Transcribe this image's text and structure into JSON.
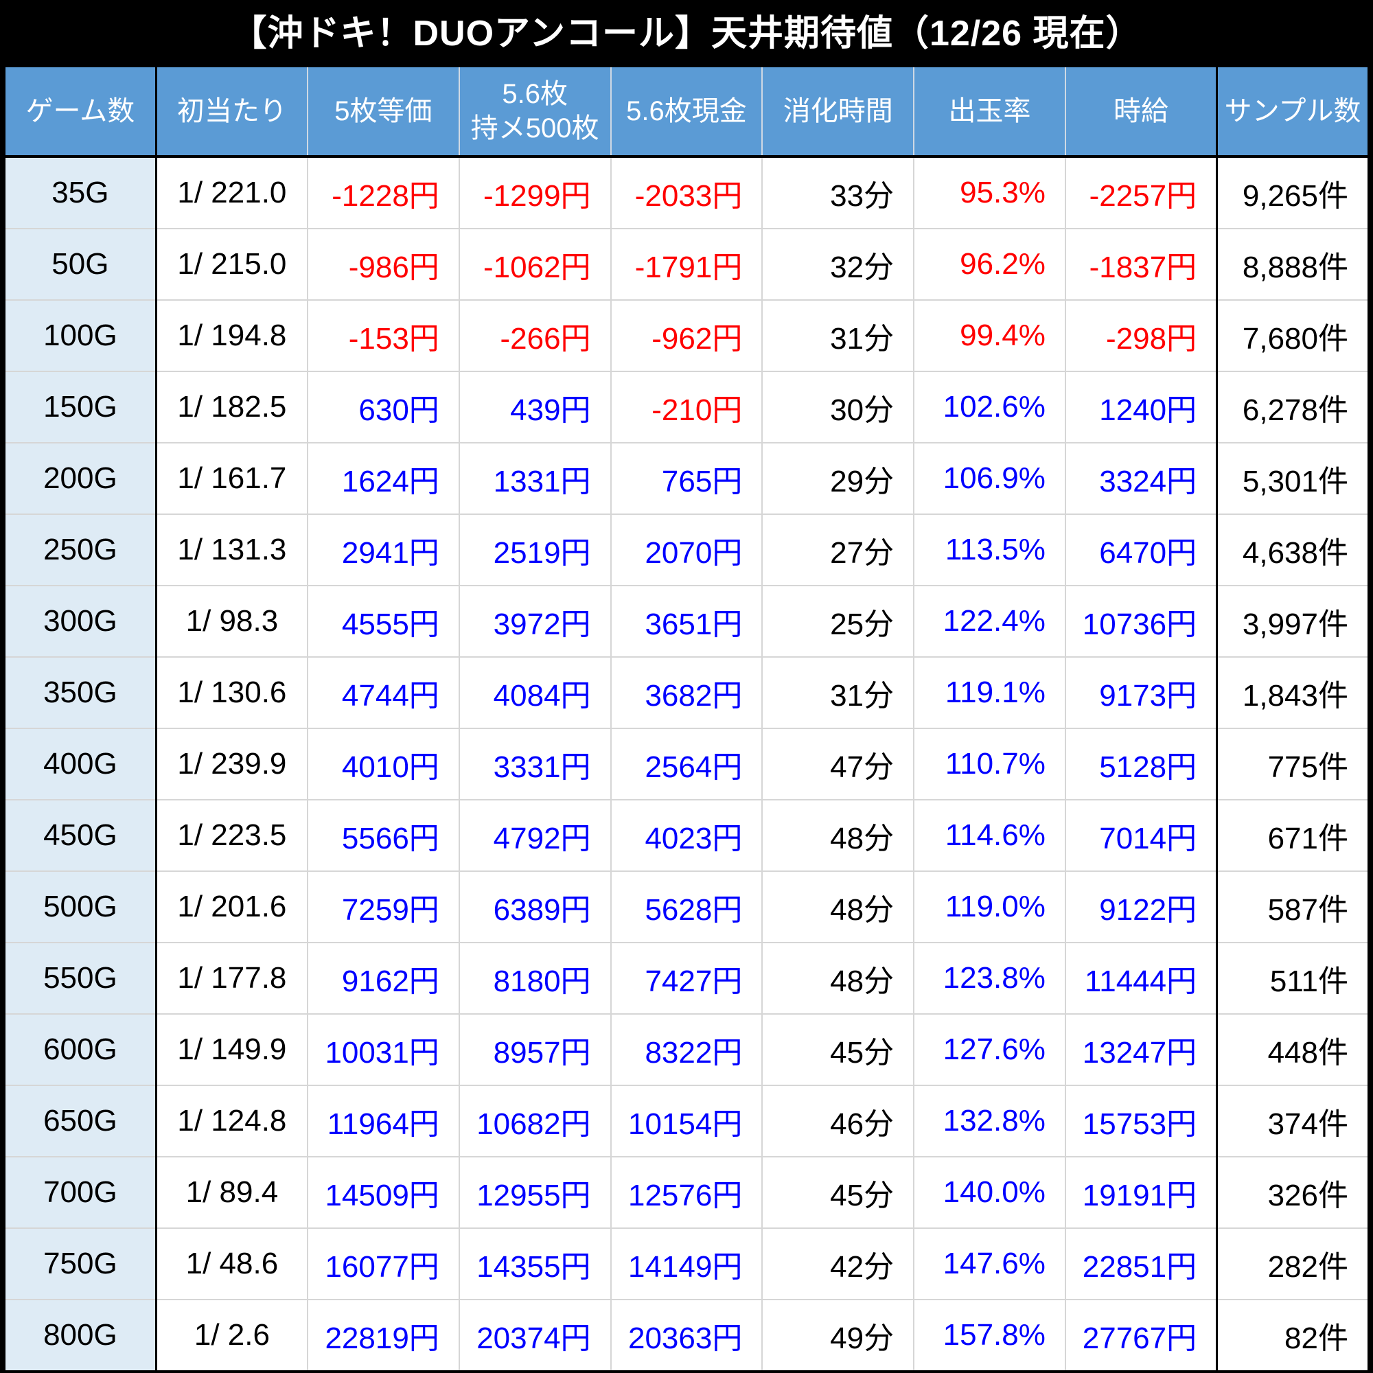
{
  "title": "【沖ドキ！DUOアンコール】天井期待値（12/26 現在）",
  "colors": {
    "background": "#000000",
    "header_bg": "#5B9BD5",
    "header_text": "#FFFFFF",
    "first_column_bg": "#DEEBF5",
    "negative_value": "#FF0000",
    "positive_value": "#0000FF",
    "plain_text": "#000000",
    "grid_line": "#D6D6D6",
    "thick_divider": "#000000"
  },
  "chart_data": {
    "type": "table",
    "title": "【沖ドキ！DUOアンコール】天井期待値（12/26 現在）",
    "columns": [
      "ゲーム数",
      "初当たり",
      "5枚等価",
      "5.6枚\n持メ500枚",
      "5.6枚現金",
      "消化時間",
      "出玉率",
      "時給",
      "サンプル数"
    ],
    "rows": [
      [
        "35G",
        "1/ 221.0",
        "-1228円",
        "-1299円",
        "-2033円",
        "33分",
        "95.3%",
        "-2257円",
        "9,265件"
      ],
      [
        "50G",
        "1/ 215.0",
        "-986円",
        "-1062円",
        "-1791円",
        "32分",
        "96.2%",
        "-1837円",
        "8,888件"
      ],
      [
        "100G",
        "1/ 194.8",
        "-153円",
        "-266円",
        "-962円",
        "31分",
        "99.4%",
        "-298円",
        "7,680件"
      ],
      [
        "150G",
        "1/ 182.5",
        "630円",
        "439円",
        "-210円",
        "30分",
        "102.6%",
        "1240円",
        "6,278件"
      ],
      [
        "200G",
        "1/ 161.7",
        "1624円",
        "1331円",
        "765円",
        "29分",
        "106.9%",
        "3324円",
        "5,301件"
      ],
      [
        "250G",
        "1/ 131.3",
        "2941円",
        "2519円",
        "2070円",
        "27分",
        "113.5%",
        "6470円",
        "4,638件"
      ],
      [
        "300G",
        "1/ 98.3",
        "4555円",
        "3972円",
        "3651円",
        "25分",
        "122.4%",
        "10736円",
        "3,997件"
      ],
      [
        "350G",
        "1/ 130.6",
        "4744円",
        "4084円",
        "3682円",
        "31分",
        "119.1%",
        "9173円",
        "1,843件"
      ],
      [
        "400G",
        "1/ 239.9",
        "4010円",
        "3331円",
        "2564円",
        "47分",
        "110.7%",
        "5128円",
        "775件"
      ],
      [
        "450G",
        "1/ 223.5",
        "5566円",
        "4792円",
        "4023円",
        "48分",
        "114.6%",
        "7014円",
        "671件"
      ],
      [
        "500G",
        "1/ 201.6",
        "7259円",
        "6389円",
        "5628円",
        "48分",
        "119.0%",
        "9122円",
        "587件"
      ],
      [
        "550G",
        "1/ 177.8",
        "9162円",
        "8180円",
        "7427円",
        "48分",
        "123.8%",
        "11444円",
        "511件"
      ],
      [
        "600G",
        "1/ 149.9",
        "10031円",
        "8957円",
        "8322円",
        "45分",
        "127.6%",
        "13247円",
        "448件"
      ],
      [
        "650G",
        "1/ 124.8",
        "11964円",
        "10682円",
        "10154円",
        "46分",
        "132.8%",
        "15753円",
        "374件"
      ],
      [
        "700G",
        "1/ 89.4",
        "14509円",
        "12955円",
        "12576円",
        "45分",
        "140.0%",
        "19191円",
        "326件"
      ],
      [
        "750G",
        "1/ 48.6",
        "16077円",
        "14355円",
        "14149円",
        "42分",
        "147.6%",
        "22851円",
        "282件"
      ],
      [
        "800G",
        "1/ 2.6",
        "22819円",
        "20374円",
        "20363円",
        "49分",
        "157.8%",
        "27767円",
        "82件"
      ]
    ]
  }
}
